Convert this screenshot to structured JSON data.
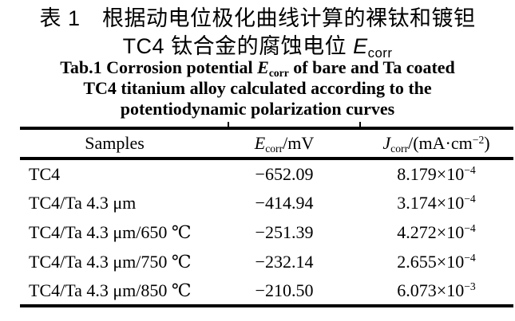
{
  "titles": {
    "zh_line1": "表 1　根据动电位极化曲线计算的裸钛和镀钽",
    "zh_line2_prefix": "TC4 钛合金的腐蚀电位 ",
    "zh_line2_symbol": "E",
    "zh_line2_sub": "corr",
    "en_line1_prefix": "Tab.1 Corrosion potential ",
    "en_symbol": "E",
    "en_sub": "corr",
    "en_line1_suffix": " of bare and Ta coated",
    "en_line2": "TC4 titanium alloy calculated according to the",
    "en_line3": "potentiodynamic polarization curves"
  },
  "table": {
    "headers": {
      "samples": "Samples",
      "ecorr": {
        "symbol": "E",
        "sub": "corr",
        "unit": "/mV"
      },
      "jcorr": {
        "symbol": "J",
        "sub": "corr",
        "unit_pre": "/(mA·cm",
        "sup": "−2",
        "unit_post": ")"
      }
    },
    "rows": [
      {
        "sample": "TC4",
        "ecorr": "−652.09",
        "jcorr_base": "8.179×10",
        "jcorr_exp": "−4"
      },
      {
        "sample": "TC4/Ta 4.3 μm",
        "ecorr": "−414.94",
        "jcorr_base": "3.174×10",
        "jcorr_exp": "−4"
      },
      {
        "sample": "TC4/Ta 4.3 μm/650 ℃",
        "ecorr": "−251.39",
        "jcorr_base": "4.272×10",
        "jcorr_exp": "−4"
      },
      {
        "sample": "TC4/Ta 4.3 μm/750 ℃",
        "ecorr": "−232.14",
        "jcorr_base": "2.655×10",
        "jcorr_exp": "−4"
      },
      {
        "sample": "TC4/Ta 4.3 μm/850 ℃",
        "ecorr": "−210.50",
        "jcorr_base": "6.073×10",
        "jcorr_exp": "−3"
      }
    ]
  },
  "colors": {
    "background": "#ffffff",
    "text": "#000000",
    "rule": "#000000"
  }
}
